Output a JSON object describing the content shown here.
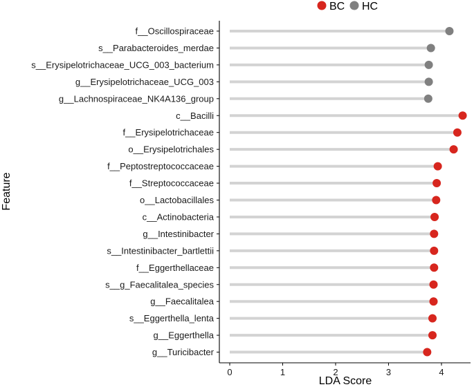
{
  "chart_data": {
    "type": "lollipop",
    "title": "",
    "xlabel": "LDA Score",
    "ylabel": "Feature",
    "xlim": [
      0,
      4.5
    ],
    "xticks": [
      0,
      1,
      2,
      3,
      4
    ],
    "grid": false,
    "legend": {
      "position": "top-right",
      "entries": [
        {
          "name": "BC",
          "color": "#d7261e"
        },
        {
          "name": "HC",
          "color": "#808080"
        }
      ]
    },
    "stem_color": "#d3d3d3",
    "features": [
      {
        "name": "f__Oscillospiraceae",
        "value": 4.15,
        "group": "HC"
      },
      {
        "name": "s__Parabacteroides_merdae",
        "value": 3.8,
        "group": "HC"
      },
      {
        "name": "s__Erysipelotrichaceae_UCG_003_bacterium",
        "value": 3.76,
        "group": "HC"
      },
      {
        "name": "g__Erysipelotrichaceae_UCG_003",
        "value": 3.76,
        "group": "HC"
      },
      {
        "name": "g__Lachnospiraceae_NK4A136_group",
        "value": 3.75,
        "group": "HC"
      },
      {
        "name": "c__Bacilli",
        "value": 4.4,
        "group": "BC"
      },
      {
        "name": "f__Erysipelotrichaceae",
        "value": 4.3,
        "group": "BC"
      },
      {
        "name": "o__Erysipelotrichales",
        "value": 4.23,
        "group": "BC"
      },
      {
        "name": "f__Peptostreptococcaceae",
        "value": 3.93,
        "group": "BC"
      },
      {
        "name": "f__Streptococcaceae",
        "value": 3.91,
        "group": "BC"
      },
      {
        "name": "o__Lactobacillales",
        "value": 3.9,
        "group": "BC"
      },
      {
        "name": "c__Actinobacteria",
        "value": 3.87,
        "group": "BC"
      },
      {
        "name": "g__Intestinibacter",
        "value": 3.86,
        "group": "BC"
      },
      {
        "name": "s__Intestinibacter_bartlettii",
        "value": 3.86,
        "group": "BC"
      },
      {
        "name": "f__Eggerthellaceae",
        "value": 3.86,
        "group": "BC"
      },
      {
        "name": "s__g_Faecalitalea_species",
        "value": 3.85,
        "group": "BC"
      },
      {
        "name": "g__Faecalitalea",
        "value": 3.85,
        "group": "BC"
      },
      {
        "name": "s__Eggerthella_lenta",
        "value": 3.83,
        "group": "BC"
      },
      {
        "name": "g__Eggerthella",
        "value": 3.83,
        "group": "BC"
      },
      {
        "name": "g__Turicibacter",
        "value": 3.73,
        "group": "BC"
      }
    ]
  }
}
